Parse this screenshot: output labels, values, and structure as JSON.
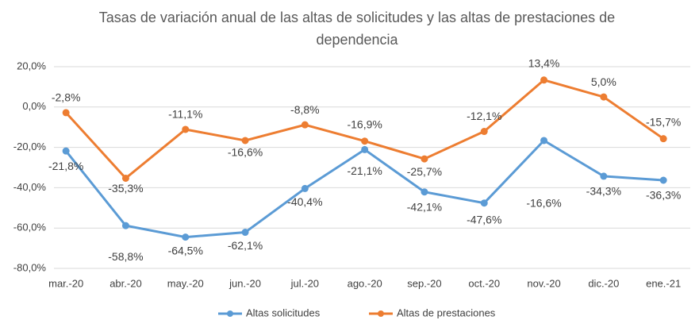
{
  "chart_data": {
    "type": "line",
    "title": "Tasas de variación anual de las altas de solicitudes y las altas de prestaciones de dependencia",
    "categories": [
      "mar.-20",
      "abr.-20",
      "may.-20",
      "jun.-20",
      "jul.-20",
      "ago.-20",
      "sep.-20",
      "oct.-20",
      "nov.-20",
      "dic.-20",
      "ene.-21"
    ],
    "series": [
      {
        "name": "Altas solicitudes",
        "color": "#5b9bd5",
        "values": [
          -21.8,
          -58.8,
          -64.5,
          -62.1,
          -40.4,
          -21.1,
          -42.1,
          -47.6,
          -16.6,
          -34.3,
          -36.3
        ],
        "value_labels": [
          "-21,8%",
          "-58,8%",
          "-64,5%",
          "-62,1%",
          "-40,4%",
          "-21,1%",
          "-42,1%",
          "-47,6%",
          "-16,6%",
          "-34,3%",
          "-36,3%"
        ]
      },
      {
        "name": "Altas de prestaciones",
        "color": "#ed7d31",
        "values": [
          -2.8,
          -35.3,
          -11.1,
          -16.6,
          -8.8,
          -16.9,
          -25.7,
          -12.1,
          13.4,
          5.0,
          -15.7
        ],
        "value_labels": [
          "-2,8%",
          "-35,3%",
          "-11,1%",
          "-16,6%",
          "-8,8%",
          "-16,9%",
          "-25,7%",
          "-12,1%",
          "13,4%",
          "5,0%",
          "-15,7%"
        ]
      }
    ],
    "ylim": [
      -80,
      20
    ],
    "yticks": [
      {
        "value": -80,
        "label": "-80,0%"
      },
      {
        "value": -60,
        "label": "-60,0%"
      },
      {
        "value": -40,
        "label": "-40,0%"
      },
      {
        "value": -20,
        "label": "-20,0%"
      },
      {
        "value": 0,
        "label": "0,0%"
      },
      {
        "value": 20,
        "label": "20,0%"
      }
    ],
    "grid": true,
    "legend": "bottom"
  }
}
